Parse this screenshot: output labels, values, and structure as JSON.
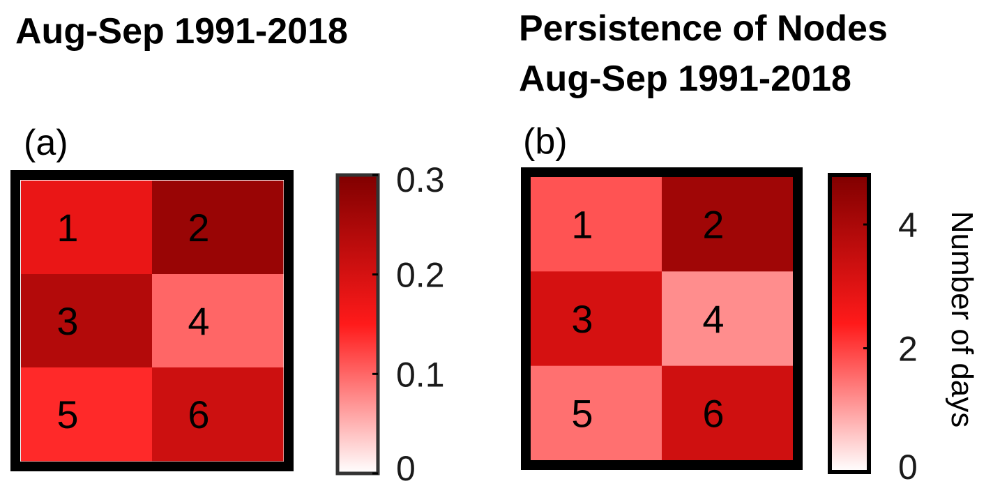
{
  "colors": {
    "low": "#ffffff",
    "mid": "#ff1a1a",
    "high": "#800000",
    "frame": "#000000"
  },
  "chart_data": [
    {
      "type": "heatmap",
      "title": "Aug-Sep 1991-2018",
      "panel_label": "(a)",
      "grid": {
        "rows": 3,
        "cols": 2
      },
      "cells": [
        {
          "node": "1",
          "row": 0,
          "col": 0,
          "value": 0.175
        },
        {
          "node": "2",
          "row": 0,
          "col": 1,
          "value": 0.27
        },
        {
          "node": "3",
          "row": 1,
          "col": 0,
          "value": 0.24
        },
        {
          "node": "4",
          "row": 1,
          "col": 1,
          "value": 0.1
        },
        {
          "node": "5",
          "row": 2,
          "col": 0,
          "value": 0.14
        },
        {
          "node": "6",
          "row": 2,
          "col": 1,
          "value": 0.21
        }
      ],
      "colorbar": {
        "min": 0,
        "max": 0.3,
        "ticks": [
          0,
          0.1,
          0.2,
          0.3
        ],
        "tick_labels": [
          "0",
          "0.1",
          "0.2",
          "0.3"
        ],
        "label": ""
      }
    },
    {
      "type": "heatmap",
      "title": "Persistence of Nodes Aug-Sep 1991-2018",
      "title_lines": [
        "Persistence of Nodes",
        "Aug-Sep 1991-2018"
      ],
      "panel_label": "(b)",
      "grid": {
        "rows": 3,
        "cols": 2
      },
      "cells": [
        {
          "node": "1",
          "row": 0,
          "col": 0,
          "value": 1.8
        },
        {
          "node": "2",
          "row": 0,
          "col": 1,
          "value": 4.2
        },
        {
          "node": "3",
          "row": 1,
          "col": 0,
          "value": 3.2
        },
        {
          "node": "4",
          "row": 1,
          "col": 1,
          "value": 1.2
        },
        {
          "node": "5",
          "row": 2,
          "col": 0,
          "value": 1.5
        },
        {
          "node": "6",
          "row": 2,
          "col": 1,
          "value": 3.3
        }
      ],
      "colorbar": {
        "min": 0,
        "max": 4.8,
        "ticks": [
          0,
          2,
          4
        ],
        "tick_labels": [
          "0",
          "2",
          "4"
        ],
        "label": "Number of days"
      }
    }
  ]
}
